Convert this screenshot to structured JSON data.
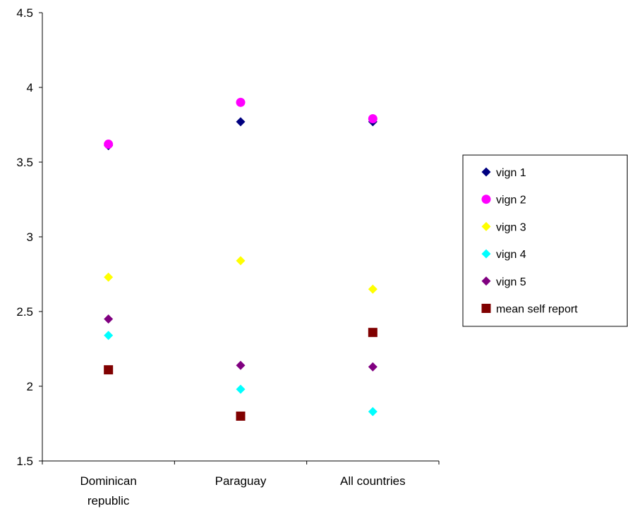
{
  "chart_data": {
    "type": "scatter",
    "title": "",
    "xlabel": "",
    "ylabel": "",
    "ylim": [
      1.5,
      4.5
    ],
    "yticks": [
      "1.5",
      "2",
      "2.5",
      "3",
      "3.5",
      "4",
      "4.5"
    ],
    "categories": [
      [
        "Dominican",
        "republic"
      ],
      [
        "Paraguay"
      ],
      [
        "All countries"
      ]
    ],
    "grid": false,
    "legend_position": "right",
    "series": [
      {
        "name": "vign 1",
        "marker": "diamond",
        "color": "#000080",
        "values": [
          3.61,
          3.77,
          3.77
        ]
      },
      {
        "name": "vign 2",
        "marker": "circle",
        "color": "#ff00ff",
        "values": [
          3.62,
          3.9,
          3.79
        ]
      },
      {
        "name": "vign 3",
        "marker": "diamond",
        "color": "#ffff00",
        "values": [
          2.73,
          2.84,
          2.65
        ]
      },
      {
        "name": "vign 4",
        "marker": "diamond",
        "color": "#00ffff",
        "values": [
          2.34,
          1.98,
          1.83
        ]
      },
      {
        "name": "vign 5",
        "marker": "diamond",
        "color": "#800080",
        "values": [
          2.45,
          2.14,
          2.13
        ]
      },
      {
        "name": "mean self report",
        "marker": "square",
        "color": "#800000",
        "values": [
          2.11,
          1.8,
          2.36
        ]
      }
    ]
  }
}
